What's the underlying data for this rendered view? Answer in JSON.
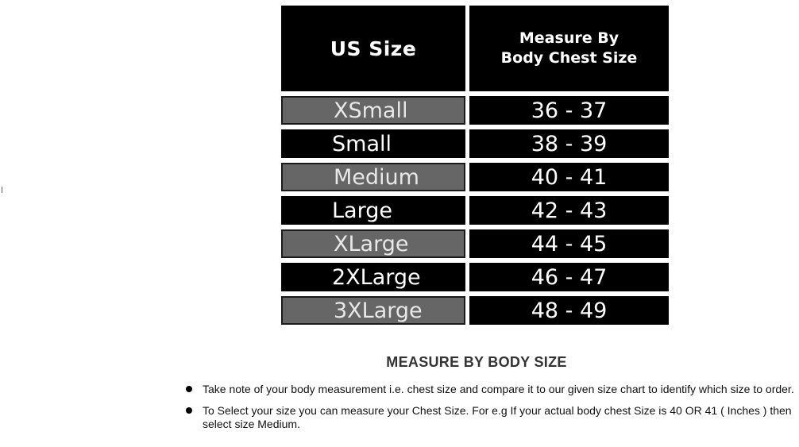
{
  "size_chart": {
    "headers": {
      "size": "US Size",
      "chest_line1": "Measure By",
      "chest_line2": "Body Chest Size"
    },
    "rows": [
      {
        "size": "XSmall",
        "chest": "36 - 37"
      },
      {
        "size": "Small",
        "chest": "38 - 39"
      },
      {
        "size": "Medium",
        "chest": "40 - 41"
      },
      {
        "size": "Large",
        "chest": "42 - 43"
      },
      {
        "size": "XLarge",
        "chest": "44 - 45"
      },
      {
        "size": "2XLarge",
        "chest": "46 - 47"
      },
      {
        "size": "3XLarge",
        "chest": "48 - 49"
      }
    ]
  },
  "section_title": "MEASURE BY BODY SIZE",
  "notes": [
    "Take note of your body measurement i.e. chest size and compare it to our given size chart to identify which size to order.",
    "To Select your size you can measure your Chest Size. For e.g If your actual body chest Size is  40 OR 41 ( Inches ) then select size Medium."
  ],
  "colors": {
    "header_bg": "#000000",
    "row_grey": "#666666",
    "row_black": "#000000",
    "text_light": "#ffffff"
  }
}
